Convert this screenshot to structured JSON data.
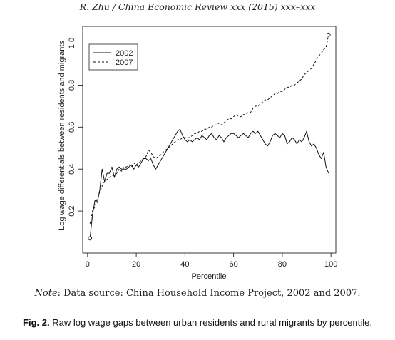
{
  "header": {
    "text": "R. Zhu / China Economic Review xxx (2015) xxx–xxx"
  },
  "note": {
    "label": "Note",
    "text": ": Data source: China Household Income Project, 2002 and 2007."
  },
  "caption": {
    "fig_num": "Fig. 2.",
    "text": " Raw log wage gaps between urban residents and rural migrants by percentile."
  },
  "chart_data": {
    "type": "line",
    "title": "",
    "xlabel": "Percentile",
    "ylabel": "Log wage differentials between residents and migrants",
    "xlim": [
      -2,
      102
    ],
    "ylim": [
      0.0,
      1.08
    ],
    "xticks": [
      0,
      20,
      40,
      60,
      80,
      100
    ],
    "yticks": [
      0.2,
      0.4,
      0.6,
      0.8,
      1.0
    ],
    "ytick_labels": [
      "0.2",
      "0.4",
      "0.6",
      "0.8",
      "1.0"
    ],
    "grid": false,
    "legend_position": "top-left",
    "series": [
      {
        "name": "2002",
        "style": "solid",
        "x": [
          1,
          2,
          3,
          4,
          5,
          6,
          7,
          8,
          9,
          10,
          11,
          12,
          13,
          14,
          15,
          16,
          17,
          18,
          19,
          20,
          21,
          22,
          23,
          24,
          25,
          26,
          27,
          28,
          29,
          30,
          31,
          32,
          33,
          34,
          35,
          36,
          37,
          38,
          39,
          40,
          41,
          42,
          43,
          44,
          45,
          46,
          47,
          48,
          49,
          50,
          51,
          52,
          53,
          54,
          55,
          56,
          57,
          58,
          59,
          60,
          61,
          62,
          63,
          64,
          65,
          66,
          67,
          68,
          69,
          70,
          71,
          72,
          73,
          74,
          75,
          76,
          77,
          78,
          79,
          80,
          81,
          82,
          83,
          84,
          85,
          86,
          87,
          88,
          89,
          90,
          91,
          92,
          93,
          94,
          95,
          96,
          97,
          98,
          99
        ],
        "values": [
          0.07,
          0.18,
          0.25,
          0.24,
          0.3,
          0.4,
          0.34,
          0.38,
          0.38,
          0.41,
          0.36,
          0.4,
          0.41,
          0.4,
          0.4,
          0.4,
          0.41,
          0.42,
          0.4,
          0.42,
          0.41,
          0.43,
          0.45,
          0.45,
          0.44,
          0.45,
          0.42,
          0.4,
          0.42,
          0.44,
          0.46,
          0.48,
          0.5,
          0.52,
          0.54,
          0.56,
          0.58,
          0.59,
          0.56,
          0.54,
          0.53,
          0.54,
          0.53,
          0.54,
          0.55,
          0.54,
          0.56,
          0.55,
          0.54,
          0.56,
          0.57,
          0.55,
          0.54,
          0.56,
          0.55,
          0.53,
          0.55,
          0.56,
          0.57,
          0.57,
          0.56,
          0.55,
          0.56,
          0.57,
          0.56,
          0.55,
          0.57,
          0.58,
          0.57,
          0.58,
          0.56,
          0.54,
          0.52,
          0.51,
          0.53,
          0.56,
          0.57,
          0.56,
          0.55,
          0.57,
          0.56,
          0.52,
          0.53,
          0.55,
          0.54,
          0.52,
          0.54,
          0.53,
          0.55,
          0.58,
          0.53,
          0.51,
          0.52,
          0.5,
          0.47,
          0.45,
          0.48,
          0.41,
          0.38
        ]
      },
      {
        "name": "2007",
        "style": "dashed",
        "x": [
          1,
          2,
          3,
          4,
          5,
          6,
          7,
          8,
          9,
          10,
          11,
          12,
          13,
          14,
          15,
          16,
          17,
          18,
          19,
          20,
          21,
          22,
          23,
          24,
          25,
          26,
          27,
          28,
          29,
          30,
          31,
          32,
          33,
          34,
          35,
          36,
          37,
          38,
          39,
          40,
          41,
          42,
          43,
          44,
          45,
          46,
          47,
          48,
          49,
          50,
          51,
          52,
          53,
          54,
          55,
          56,
          57,
          58,
          59,
          60,
          61,
          62,
          63,
          64,
          65,
          66,
          67,
          68,
          69,
          70,
          71,
          72,
          73,
          74,
          75,
          76,
          77,
          78,
          79,
          80,
          81,
          82,
          83,
          84,
          85,
          86,
          87,
          88,
          89,
          90,
          91,
          92,
          93,
          94,
          95,
          96,
          97,
          98,
          99
        ],
        "values": [
          0.14,
          0.2,
          0.22,
          0.26,
          0.29,
          0.32,
          0.34,
          0.35,
          0.36,
          0.37,
          0.37,
          0.38,
          0.4,
          0.39,
          0.41,
          0.41,
          0.42,
          0.41,
          0.43,
          0.42,
          0.43,
          0.44,
          0.45,
          0.46,
          0.49,
          0.48,
          0.46,
          0.45,
          0.46,
          0.47,
          0.48,
          0.49,
          0.5,
          0.51,
          0.52,
          0.53,
          0.54,
          0.54,
          0.55,
          0.55,
          0.55,
          0.55,
          0.56,
          0.57,
          0.57,
          0.58,
          0.58,
          0.59,
          0.59,
          0.6,
          0.6,
          0.61,
          0.61,
          0.62,
          0.61,
          0.62,
          0.63,
          0.64,
          0.64,
          0.65,
          0.66,
          0.65,
          0.65,
          0.66,
          0.66,
          0.67,
          0.67,
          0.69,
          0.7,
          0.7,
          0.71,
          0.72,
          0.73,
          0.73,
          0.74,
          0.75,
          0.76,
          0.76,
          0.77,
          0.77,
          0.78,
          0.79,
          0.79,
          0.8,
          0.8,
          0.81,
          0.82,
          0.83,
          0.85,
          0.86,
          0.87,
          0.88,
          0.9,
          0.92,
          0.94,
          0.95,
          0.97,
          0.98,
          1.04
        ]
      }
    ]
  }
}
